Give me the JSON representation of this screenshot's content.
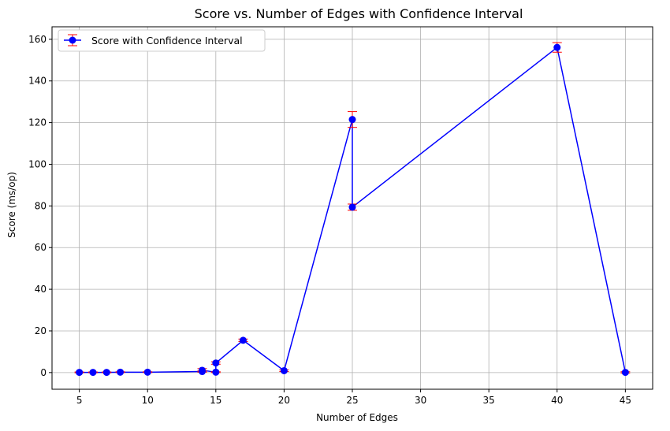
{
  "chart_data": {
    "type": "line",
    "title": "Score vs. Number of Edges with Confidence Interval",
    "xlabel": "Number of Edges",
    "ylabel": "Score (ms/op)",
    "xlim": [
      3.0,
      47.0
    ],
    "ylim": [
      -8.0,
      166.0
    ],
    "xticks": [
      5,
      10,
      15,
      20,
      25,
      30,
      35,
      40,
      45
    ],
    "yticks": [
      0,
      20,
      40,
      60,
      80,
      100,
      120,
      140,
      160
    ],
    "grid": true,
    "legend_position": "upper-left",
    "line_color": "#0000ff",
    "errorbar_color": "#ff0000",
    "series": [
      {
        "name": "Score with Confidence Interval",
        "x": [
          5,
          6,
          7,
          8,
          10,
          14,
          14,
          15,
          15,
          17,
          20,
          25,
          25,
          40,
          45
        ],
        "y": [
          0.1,
          0.1,
          0.1,
          0.2,
          0.2,
          0.5,
          1.1,
          0.2,
          4.6,
          15.5,
          0.9,
          121.5,
          79.4,
          156.1,
          0.1
        ],
        "err": [
          0.2,
          0.2,
          0.2,
          0.2,
          0.2,
          0.3,
          0.8,
          0.2,
          0.6,
          0.6,
          0.4,
          3.8,
          1.5,
          2.3,
          0.3
        ]
      }
    ]
  }
}
